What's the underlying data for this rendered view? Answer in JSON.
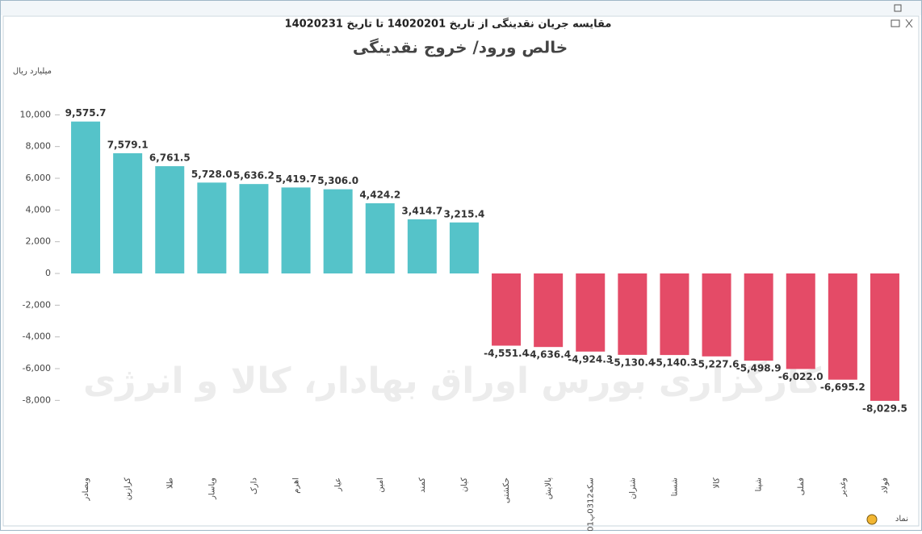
{
  "window_title": "مقایسه جریان نقدینگی از تاریخ 14020201 تا تاریخ 14020231",
  "watermark": "کارگزاری بورس اوراق بهادار، کالا و انرژی",
  "chart_data": {
    "type": "bar",
    "title": "خالص ورود/ خروج نقدینگی",
    "y_label": "میلیارد ریال",
    "x_label": "نماد",
    "categories": [
      "وبصادر",
      "کرازین",
      "طلا",
      "وپاسار",
      "دارک",
      "اهرم",
      "عیار",
      "امین",
      "کمند",
      "کیان",
      "حکشتی",
      "پالایش",
      "سکه0312پ01",
      "شتران",
      "شستا",
      "کالا",
      "شپنا",
      "فملی",
      "وغدیر",
      "فولاد"
    ],
    "values": [
      9575.7,
      7579.1,
      6761.5,
      5728.0,
      5636.2,
      5419.7,
      5306.0,
      4424.2,
      3414.7,
      3215.4,
      -4551.4,
      -4636.4,
      -4924.3,
      -5130.4,
      -5140.3,
      -5227.6,
      -5498.9,
      -6022.0,
      -6695.2,
      -8029.5
    ],
    "value_labels": [
      "9,575.7",
      "7,579.1",
      "6,761.5",
      "5,728.0",
      "5,636.2",
      "5,419.7",
      "5,306.0",
      "4,424.2",
      "3,414.7",
      "3,215.4",
      "-4,551.4",
      "-4,636.4",
      "-4,924.3",
      "-5,130.4",
      "-5,140.3",
      "-5,227.6",
      "-5,498.9",
      "-6,022.0",
      "-6,695.2",
      "-8,029.5"
    ],
    "positive_color": "#4cc0c6",
    "negative_color": "#e3415f",
    "ylim": [
      -9000,
      12000
    ],
    "yticks": [
      {
        "value": -8000,
        "label": "-8,000"
      },
      {
        "value": -6000,
        "label": "-6,000"
      },
      {
        "value": -4000,
        "label": "-4,000"
      },
      {
        "value": -2000,
        "label": "-2,000"
      },
      0,
      {
        "value": 2000,
        "label": "2,000"
      },
      {
        "value": 4000,
        "label": "4,000"
      },
      {
        "value": 6000,
        "label": "6,000"
      },
      {
        "value": 8000,
        "label": "8,000"
      },
      {
        "value": 10000,
        "label": "10,000"
      }
    ]
  }
}
